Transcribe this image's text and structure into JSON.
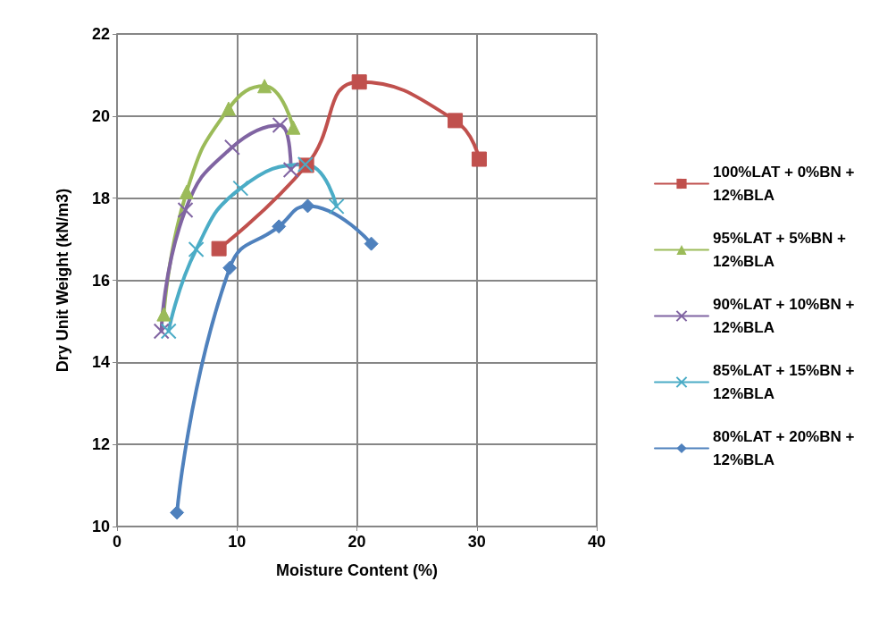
{
  "chart_data": {
    "type": "line",
    "xlabel": "Moisture Content (%)",
    "ylabel": "Dry Unit Weight (kN/m3)",
    "xlim": [
      0,
      40
    ],
    "xticks": [
      0,
      10,
      20,
      30,
      40
    ],
    "ylim": [
      10,
      22
    ],
    "yticks": [
      10,
      12,
      14,
      16,
      18,
      20,
      22
    ],
    "grid": true,
    "legend": "right",
    "line_style": "solid",
    "series": [
      {
        "name": "100%LAT + 0%BN + 12%BLA",
        "color": "#c0504d",
        "marker": "square",
        "x": [
          8.5,
          15.8,
          20.2,
          28.2,
          30.2
        ],
        "values": [
          16.77,
          18.8,
          20.83,
          19.89,
          18.95
        ]
      },
      {
        "name": "95%LAT + 5%BN + 12%BLA",
        "color": "#9bbb59",
        "marker": "triangle",
        "x": [
          3.9,
          5.8,
          9.3,
          12.3,
          14.7
        ],
        "values": [
          15.17,
          18.15,
          20.18,
          20.73,
          19.72
        ]
      },
      {
        "name": "90%LAT + 10%BN + 12%BLA",
        "color": "#8064a2",
        "marker": "cross",
        "x": [
          3.7,
          5.7,
          9.6,
          13.6,
          14.5
        ],
        "values": [
          14.76,
          17.71,
          19.24,
          19.78,
          18.69
        ]
      },
      {
        "name": "85%LAT + 15%BN + 12%BLA",
        "color": "#4bacc6",
        "marker": "cross",
        "x": [
          4.3,
          6.6,
          10.3,
          15.7,
          18.3
        ],
        "values": [
          14.76,
          16.75,
          18.24,
          18.82,
          17.8
        ]
      },
      {
        "name": "80%LAT + 20%BN + 12%BLA",
        "color": "#4f81bd",
        "marker": "diamond",
        "x": [
          5.0,
          9.4,
          13.5,
          15.9,
          21.2
        ],
        "values": [
          10.34,
          16.3,
          17.31,
          17.81,
          16.89
        ]
      }
    ]
  }
}
